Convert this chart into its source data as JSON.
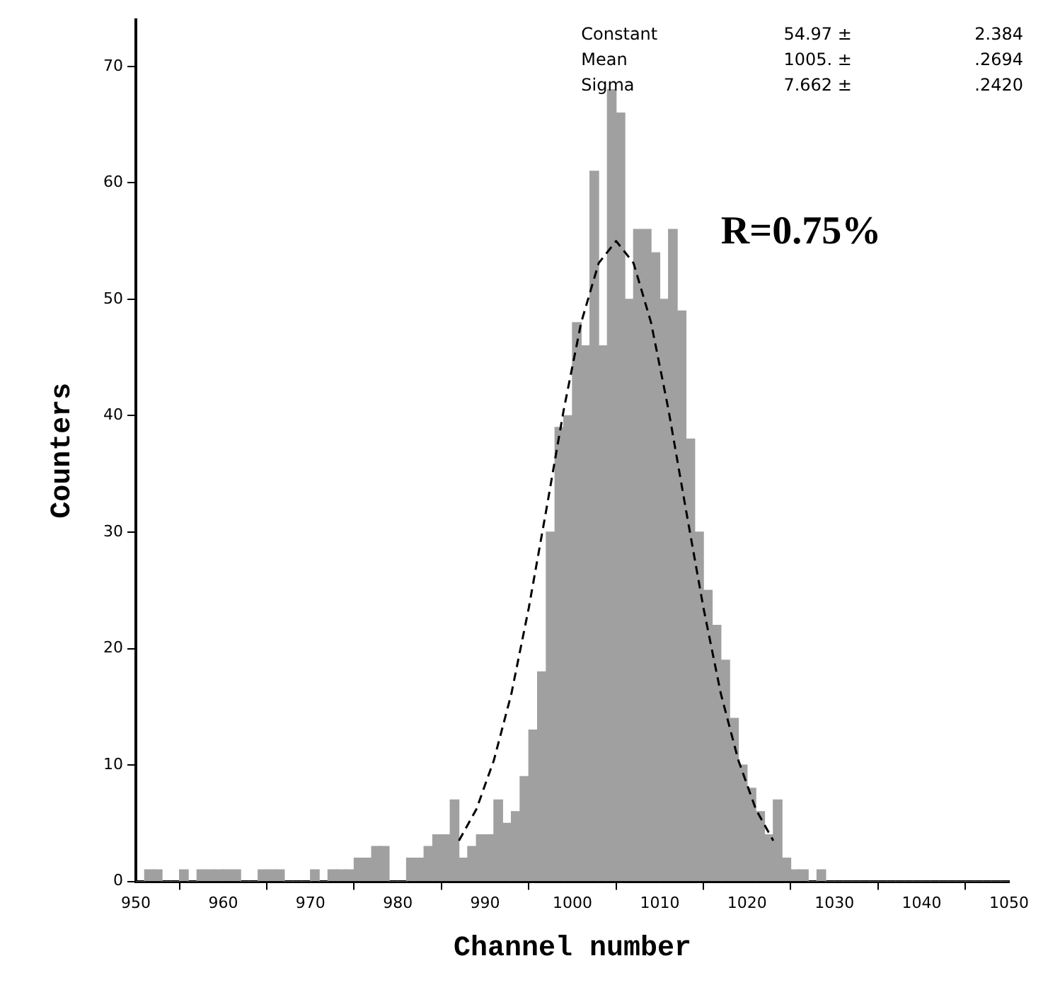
{
  "chart_data": {
    "type": "histogram",
    "xlabel": "Channel number",
    "ylabel": "Counters",
    "color": "#a0a0a0",
    "bins": [
      950,
      951,
      952,
      953,
      954,
      955,
      956,
      957,
      958,
      959,
      960,
      961,
      962,
      963,
      964,
      965,
      966,
      967,
      968,
      969,
      970,
      971,
      972,
      973,
      974,
      975,
      976,
      977,
      978,
      979,
      980,
      981,
      982,
      983,
      984,
      985,
      986,
      987,
      988,
      989,
      990,
      991,
      992,
      993,
      994,
      995,
      996,
      997,
      998,
      999,
      1000,
      1001,
      1002,
      1003,
      1004,
      1005,
      1006,
      1007,
      1008,
      1009,
      1010,
      1011,
      1012,
      1013,
      1014,
      1015,
      1016,
      1017,
      1018,
      1019,
      1020,
      1021,
      1022,
      1023,
      1024,
      1025,
      1026,
      1027,
      1028,
      1029,
      1030,
      1031,
      1032,
      1033,
      1034,
      1035,
      1036,
      1037,
      1038,
      1039,
      1040,
      1041,
      1042,
      1043,
      1044,
      1045,
      1046,
      1047,
      1048,
      1049,
      1050
    ],
    "values": [
      0,
      1,
      1,
      0,
      0,
      1,
      0,
      1,
      1,
      1,
      1,
      1,
      0,
      0,
      1,
      1,
      1,
      0,
      0,
      0,
      1,
      0,
      1,
      1,
      1,
      2,
      2,
      3,
      3,
      0,
      0,
      2,
      2,
      3,
      4,
      4,
      7,
      2,
      3,
      4,
      4,
      7,
      5,
      6,
      9,
      13,
      18,
      30,
      39,
      40,
      48,
      46,
      61,
      46,
      68,
      66,
      50,
      56,
      56,
      54,
      50,
      56,
      49,
      38,
      30,
      25,
      22,
      19,
      14,
      10,
      8,
      6,
      4,
      7,
      2,
      1,
      1,
      0,
      1,
      0,
      0,
      0,
      0,
      0,
      0,
      0,
      0,
      0,
      0,
      0,
      0,
      0,
      0,
      0,
      0,
      0,
      0,
      0,
      0,
      0
    ],
    "series": [
      {
        "type": "line",
        "color": "#000000",
        "line_style": "dashed",
        "x": [
          987,
          989,
          991,
          993,
          995,
          997,
          999,
          1001,
          1003,
          1005,
          1007,
          1009,
          1011,
          1013,
          1015,
          1017,
          1019,
          1021,
          1023
        ],
        "values": [
          3.5,
          6.2,
          10.4,
          16.1,
          23.5,
          31.9,
          40.5,
          48.0,
          53.1,
          55.0,
          53.1,
          48.0,
          40.5,
          31.9,
          23.5,
          16.1,
          10.4,
          6.2,
          3.5
        ]
      }
    ],
    "xlim": [
      950,
      1050
    ],
    "xticks": [
      950,
      960,
      970,
      980,
      990,
      1000,
      1010,
      1020,
      1030,
      1040,
      1050
    ],
    "ylim": [
      0,
      74
    ],
    "yticks": [
      0,
      10,
      20,
      30,
      40,
      50,
      60,
      70
    ],
    "grid": false,
    "legend": false,
    "marker": "none",
    "annotations": [
      "Constant",
      "54.97 ±",
      "2.384",
      "Mean",
      "1005. ±",
      ".2694",
      "Sigma",
      "7.662 ±",
      ".2420",
      "R=0.75%"
    ]
  }
}
